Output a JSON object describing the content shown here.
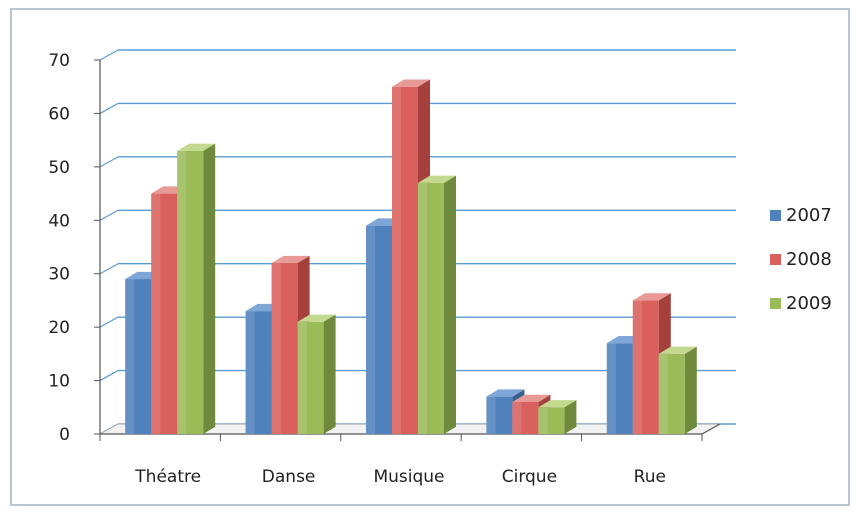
{
  "chart_data": {
    "type": "bar",
    "categories": [
      "Théatre",
      "Danse",
      "Musique",
      "Cirque",
      "Rue"
    ],
    "series": [
      {
        "name": "2007",
        "values": [
          29,
          23,
          39,
          7,
          17
        ]
      },
      {
        "name": "2008",
        "values": [
          45,
          32,
          65,
          6,
          25
        ]
      },
      {
        "name": "2009",
        "values": [
          53,
          21,
          47,
          5,
          15
        ]
      }
    ],
    "ylim": [
      0,
      70
    ],
    "yticks": [
      "0",
      "10",
      "20",
      "30",
      "40",
      "50",
      "60",
      "70"
    ],
    "grid": true,
    "legend": "right",
    "style": "3d-clustered",
    "colors": {
      "2007": {
        "front": "#4f81bd",
        "side": "#38608e",
        "top": "#7ea6d6"
      },
      "2008": {
        "front": "#d9605c",
        "side": "#a5403d",
        "top": "#e89a97"
      },
      "2009": {
        "front": "#9bbb59",
        "side": "#6f8a3c",
        "top": "#c2d98f"
      },
      "gridline": "#5b9bd5",
      "axis": "#555555"
    }
  }
}
